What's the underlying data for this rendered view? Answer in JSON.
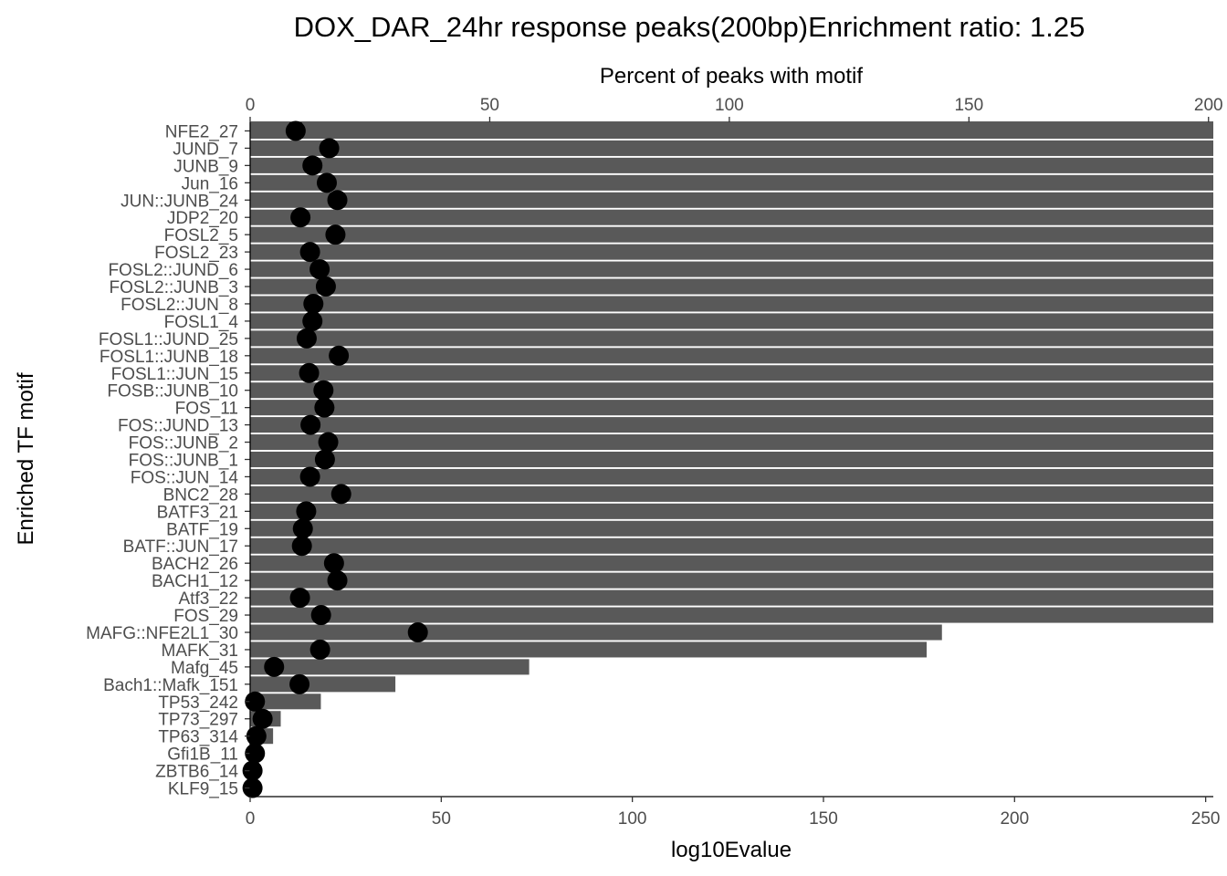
{
  "chart_data": {
    "type": "bar",
    "title": "DOX_DAR_24hr response peaks(200bp)Enrichment ratio: 1.25",
    "xlabel": "log10Evalue",
    "x2label": "Percent of peaks with motif",
    "ylabel": "Enriched TF motif",
    "xlim": [
      0,
      252
    ],
    "x2lim": [
      0,
      201
    ],
    "xticks": [
      0,
      50,
      100,
      150,
      200,
      250
    ],
    "x2ticks": [
      0,
      50,
      100,
      150,
      200
    ],
    "grid": false,
    "bar_color": "#595959",
    "point_color": "#000000",
    "categories": [
      "NFE2_27",
      "JUND_7",
      "JUNB_9",
      "Jun_16",
      "JUN::JUNB_24",
      "JDP2_20",
      "FOSL2_5",
      "FOSL2_23",
      "FOSL2::JUND_6",
      "FOSL2::JUNB_3",
      "FOSL2::JUN_8",
      "FOSL1_4",
      "FOSL1::JUND_25",
      "FOSL1::JUNB_18",
      "FOSL1::JUN_15",
      "FOSB::JUNB_10",
      "FOS_11",
      "FOS::JUND_13",
      "FOS::JUNB_2",
      "FOS::JUNB_1",
      "FOS::JUN_14",
      "BNC2_28",
      "BATF3_21",
      "BATF_19",
      "BATF::JUN_17",
      "BACH2_26",
      "BACH1_12",
      "Atf3_22",
      "FOS_29",
      "MAFG::NFE2L1_30",
      "MAFK_31",
      "Mafg_45",
      "Bach1::Mafk_151",
      "TP53_242",
      "TP73_297",
      "TP63_314",
      "Gfi1B_11",
      "ZBTB6_14",
      "KLF9_15"
    ],
    "series": [
      {
        "name": "log10Evalue",
        "axis": "bottom",
        "mark": "bar",
        "values": [
          252,
          252,
          252,
          252,
          252,
          252,
          252,
          252,
          252,
          252,
          252,
          252,
          252,
          252,
          252,
          252,
          252,
          252,
          252,
          252,
          252,
          252,
          252,
          252,
          252,
          252,
          252,
          252,
          252,
          181,
          177,
          73,
          38,
          18.5,
          8,
          6,
          0,
          0,
          0
        ]
      },
      {
        "name": "Percent of peaks with motif",
        "axis": "top",
        "mark": "point",
        "values": [
          9.5,
          16.5,
          13,
          16,
          18.2,
          10.5,
          17.8,
          12.5,
          14.5,
          15.8,
          13.2,
          13,
          11.8,
          18.5,
          12.3,
          15.3,
          15.5,
          12.6,
          16.3,
          15.6,
          12.5,
          19,
          11.7,
          11,
          10.8,
          17.5,
          18.2,
          10.4,
          14.8,
          35,
          14.6,
          5,
          10.3,
          1,
          2.6,
          1.3,
          1,
          0.5,
          0.5
        ]
      }
    ]
  }
}
